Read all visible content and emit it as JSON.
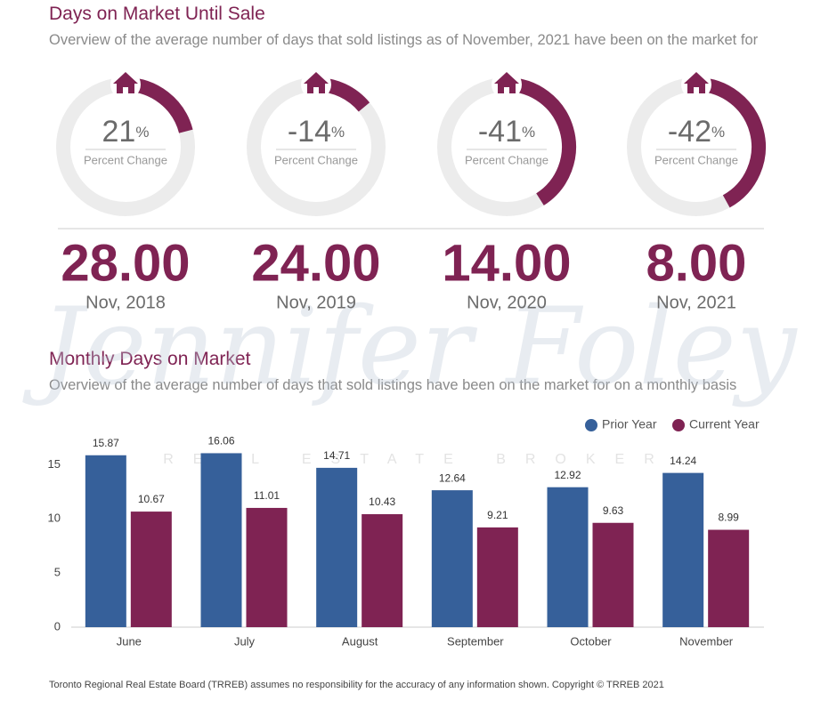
{
  "header": {
    "title": "Days on Market Until Sale",
    "subtitle": "Overview of the average number of days that sold listings as of November, 2021 have been on the market for"
  },
  "donuts": [
    {
      "value": 21,
      "unit": "%",
      "label": "Percent Change",
      "days": "28.00",
      "period": "Nov, 2018"
    },
    {
      "value": -14,
      "unit": "%",
      "label": "Percent Change",
      "days": "24.00",
      "period": "Nov, 2019"
    },
    {
      "value": -41,
      "unit": "%",
      "label": "Percent Change",
      "days": "14.00",
      "period": "Nov, 2020"
    },
    {
      "value": -42,
      "unit": "%",
      "label": "Percent Change",
      "days": "8.00",
      "period": "Nov, 2021"
    }
  ],
  "chart_data": {
    "type": "bar",
    "title": "Monthly Days on Market",
    "subtitle": "Overview of the average number of days that sold listings have been on the market for on a monthly basis",
    "categories": [
      "June",
      "July",
      "August",
      "September",
      "October",
      "November"
    ],
    "series": [
      {
        "name": "Prior Year",
        "color": "#36609a",
        "values": [
          15.87,
          16.06,
          14.71,
          12.64,
          12.92,
          14.24
        ]
      },
      {
        "name": "Current Year",
        "color": "#7f2353",
        "values": [
          10.67,
          11.01,
          10.43,
          9.21,
          9.63,
          8.99
        ]
      }
    ],
    "ylim": [
      0,
      17
    ],
    "yticks": [
      0,
      5,
      10,
      15
    ],
    "grid": false,
    "legend": "top-right"
  },
  "watermark": {
    "name": "Jennifer Foley",
    "tagline": "REAL ESTATE BROKER"
  },
  "footer": "Toronto Regional Real Estate Board (TRREB) assumes no responsibility for the accuracy of any information shown. Copyright © TRREB 2021"
}
